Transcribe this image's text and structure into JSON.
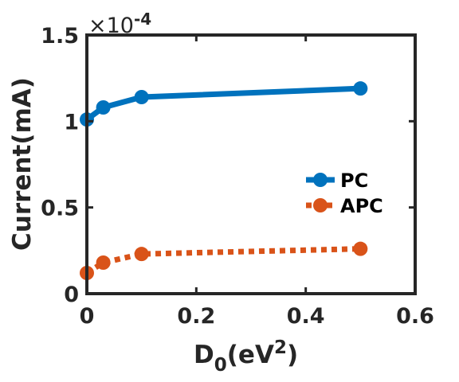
{
  "chart_data": {
    "type": "line",
    "xlabel": {
      "base": "D",
      "sub": "0",
      "mid": "(eV",
      "sup": "2",
      "end": ")"
    },
    "ylabel": "Current(mA)",
    "y_exponent": {
      "prefix": "×10",
      "power": "-4"
    },
    "xlim": [
      0,
      0.6
    ],
    "ylim": [
      0,
      1.5
    ],
    "x_ticks": [
      0,
      0.2,
      0.4,
      0.6
    ],
    "x_tick_labels": [
      "0",
      "0.2",
      "0.4",
      "0.6"
    ],
    "y_ticks": [
      0,
      0.5,
      1,
      1.5
    ],
    "y_tick_labels": [
      "0",
      "0.5",
      "1",
      "1.5"
    ],
    "grid": false,
    "legend_position": "right",
    "series": [
      {
        "name": "PC",
        "color": "#0072BD",
        "line_style": "solid",
        "x": [
          0,
          0.03,
          0.1,
          0.5
        ],
        "y": [
          1.01,
          1.08,
          1.14,
          1.19
        ]
      },
      {
        "name": "APC",
        "color": "#D95319",
        "line_style": "dotted",
        "x": [
          0,
          0.03,
          0.1,
          0.5
        ],
        "y": [
          0.12,
          0.18,
          0.23,
          0.26
        ]
      }
    ]
  }
}
